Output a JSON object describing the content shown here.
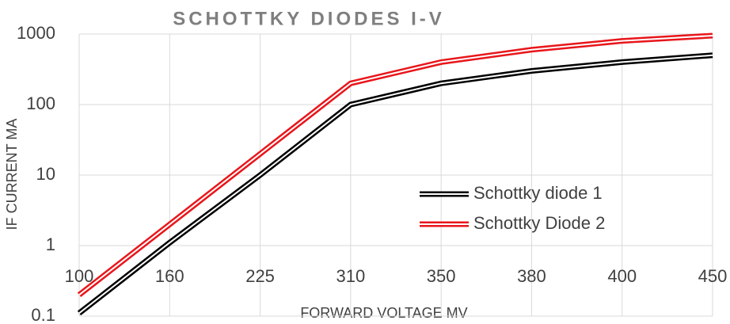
{
  "chart_data": {
    "type": "line",
    "title": "SCHOTTKY DIODES I-V",
    "x_label": "FORWARD VOLTAGE MV",
    "y_label": "IF CURRENT MA",
    "categories": [
      "100",
      "160",
      "225",
      "310",
      "350",
      "380",
      "400",
      "450"
    ],
    "series": [
      {
        "name": "Schottky diode 1",
        "color": "#000000",
        "values": [
          0.11,
          1.1,
          10,
          100,
          200,
          300,
          400,
          500
        ]
      },
      {
        "name": "Schottky Diode 2",
        "color": "#e8161b",
        "values": [
          0.2,
          2,
          20,
          200,
          400,
          600,
          800,
          950
        ]
      }
    ],
    "ylim": [
      0.1,
      1000
    ],
    "yticks": [
      0.1,
      1,
      10,
      100,
      1000
    ],
    "log_scale": true,
    "grid": true,
    "legend": "right"
  }
}
